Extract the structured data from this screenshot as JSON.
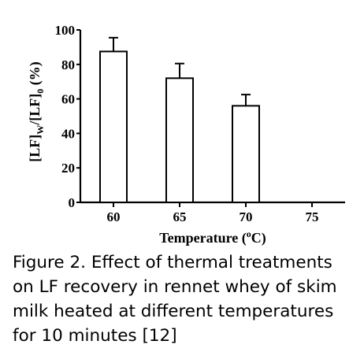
{
  "chart_data": {
    "type": "bar",
    "categories": [
      "60",
      "65",
      "70",
      "75"
    ],
    "values": [
      87.5,
      72.0,
      56.0,
      null
    ],
    "errors": [
      8.0,
      8.5,
      6.5,
      null
    ],
    "ylabel": {
      "main": "[LF]",
      "sub1": "W",
      "mid": "/[LF]",
      "sub2": "0",
      "tail": " (%)"
    },
    "xlabel": {
      "main": "Temperature (",
      "sup": "o",
      "tail": "C)"
    },
    "ylim": [
      0,
      100
    ],
    "yticks": [
      "0",
      "20",
      "40",
      "60",
      "80",
      "100"
    ],
    "grid": false,
    "bar_fill": "#ffffff",
    "bar_stroke": "#000000"
  },
  "caption": {
    "lines": [
      "Figure 2. Effect of thermal treatments",
      "on LF recovery in rennet whey of skim",
      "milk heated at different temperatures",
      "for 10 minutes [12]"
    ]
  }
}
